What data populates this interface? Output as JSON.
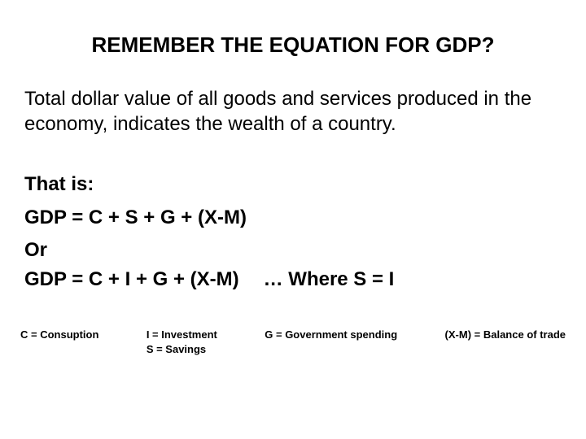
{
  "title": "REMEMBER THE EQUATION FOR GDP?",
  "description": "Total dollar value of all goods and services produced in the economy, indicates the wealth of a country.",
  "equation": {
    "intro": "That is:",
    "line1": "GDP = C + S + G + (X-M)",
    "or": "Or",
    "line2": "GDP = C + I  + G + (X-M)",
    "where": "…    Where S = I"
  },
  "legend": {
    "c": "C = Consuption",
    "i": "I = Investment",
    "s": "S = Savings",
    "g": "G = Government spending",
    "xm": "(X-M) = Balance of trade"
  },
  "colors": {
    "background": "#ffffff",
    "text": "#000000"
  },
  "fonts": {
    "title_size": 26,
    "body_size": 24,
    "legend_size": 13
  }
}
